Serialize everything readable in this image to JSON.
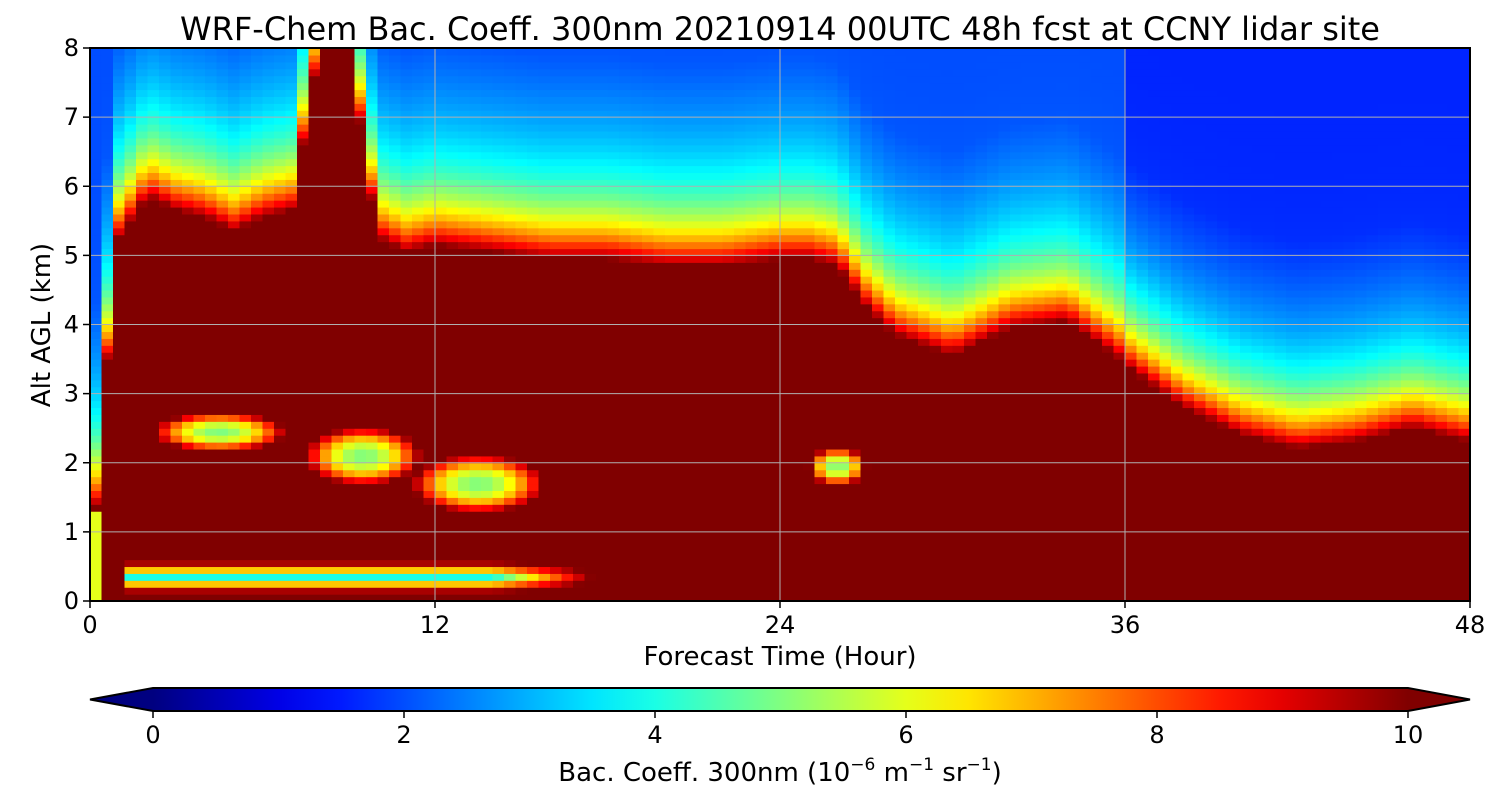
{
  "chart_data": {
    "type": "heatmap",
    "title": "WRF-Chem Bac. Coeff. 300nm  20210914 00UTC 48h fcst at CCNY lidar site",
    "xlabel": "Forecast Time (Hour)",
    "ylabel": "Alt AGL (km)",
    "xlim": [
      0,
      48
    ],
    "ylim": [
      0,
      8
    ],
    "xticks": [
      0,
      12,
      24,
      36,
      48
    ],
    "yticks": [
      0,
      1,
      2,
      3,
      4,
      5,
      6,
      7,
      8
    ],
    "grid": true,
    "colorscale": "jet",
    "colorbar": {
      "label": "Bac. Coeff. 300nm  (10",
      "label_exp1": "−6",
      "label_mid": " m",
      "label_exp2": "−1",
      "label_mid2": " sr",
      "label_exp3": "−1",
      "label_end": ")",
      "range": [
        0,
        10
      ],
      "ticks": [
        0,
        2,
        4,
        6,
        8,
        10
      ],
      "extend": "both",
      "placement": "bottom"
    },
    "x": [
      0,
      0.5,
      1,
      2,
      3,
      4,
      5,
      6,
      7,
      8,
      9,
      10,
      11,
      12,
      14,
      16,
      18,
      20,
      22,
      24,
      25,
      26,
      27,
      28,
      30,
      32,
      34,
      36,
      38,
      40,
      42,
      44,
      46,
      48
    ],
    "y": [
      0,
      0.1,
      0.25,
      0.4,
      0.55,
      0.7,
      0.85,
      1.0,
      1.2,
      1.4,
      1.6,
      1.8,
      2.0,
      2.2,
      2.4,
      2.6,
      2.8,
      3.0,
      3.3,
      3.6,
      3.9,
      4.2,
      4.5,
      4.8,
      5.1,
      5.4,
      5.7,
      6.0,
      6.4,
      6.8,
      7.2,
      7.6,
      8.0
    ],
    "features": {
      "upper_boundary_km": [
        0.2,
        3.0,
        5.2,
        5.8,
        5.6,
        5.5,
        5.3,
        5.5,
        5.6,
        8.0,
        8.0,
        5.2,
        5.0,
        5.1,
        5.0,
        4.9,
        4.9,
        4.8,
        4.8,
        4.9,
        4.9,
        4.8,
        4.2,
        3.8,
        3.5,
        3.9,
        4.0,
        3.4,
        2.8,
        2.4,
        2.2,
        2.3,
        2.5,
        2.3
      ],
      "lower_layer": {
        "x_from": 1,
        "x_to": 18,
        "y_low": 0.1,
        "y_high": 0.6
      },
      "mid_layers": [
        {
          "x_center": 4.5,
          "y_center": 2.45,
          "x_half": 2.5,
          "y_half": 0.3
        },
        {
          "x_center": 9.5,
          "y_center": 2.1,
          "x_half": 2.2,
          "y_half": 0.45
        },
        {
          "x_center": 13.5,
          "y_center": 1.7,
          "x_half": 2.5,
          "y_half": 0.45
        },
        {
          "x_center": 26.0,
          "y_center": 1.95,
          "x_half": 1.1,
          "y_half": 0.3
        }
      ]
    }
  }
}
